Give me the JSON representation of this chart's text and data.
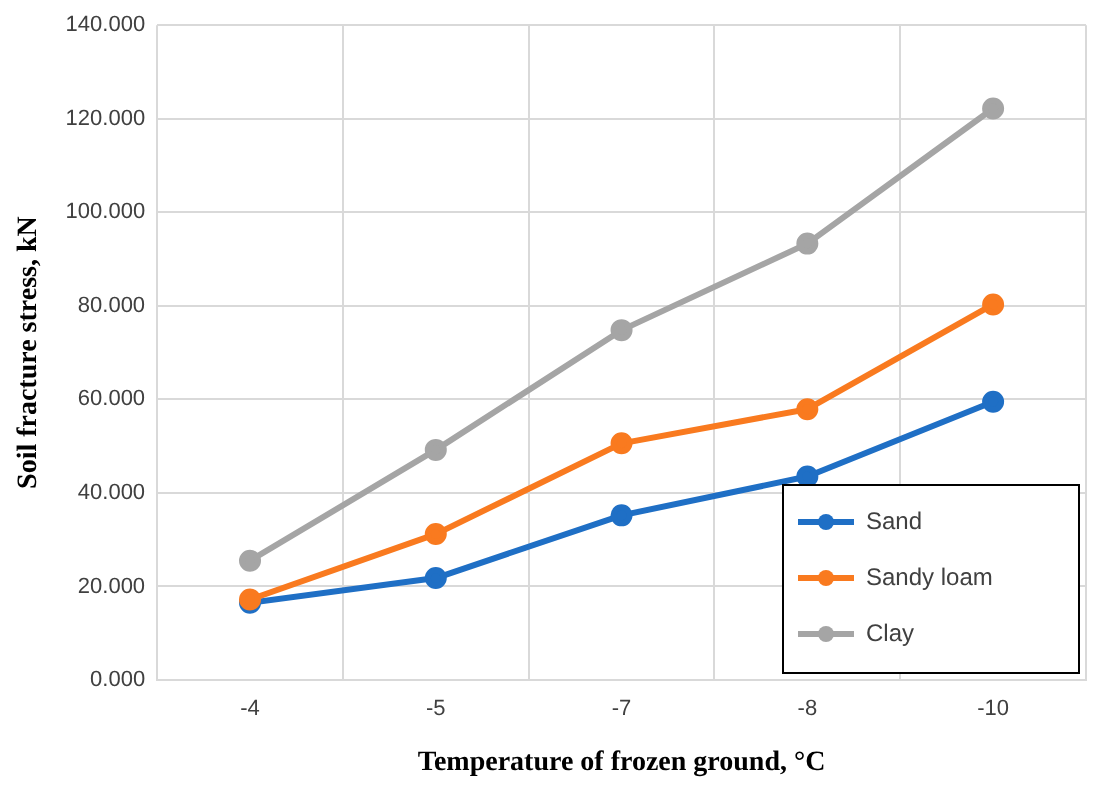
{
  "chart_data": {
    "type": "line",
    "xlabel": "Temperature of frozen ground, °C",
    "ylabel": "Soil fracture stress, kN",
    "categories": [
      "-4",
      "-5",
      "-7",
      "-8",
      "-10"
    ],
    "series": [
      {
        "name": "Sand",
        "color": "#1f6fc5",
        "values": [
          16.5,
          21.8,
          35.2,
          43.5,
          59.5
        ]
      },
      {
        "name": "Sandy loam",
        "color": "#f97a1f",
        "values": [
          17.2,
          31.2,
          50.6,
          57.9,
          80.3
        ]
      },
      {
        "name": "Clay",
        "color": "#a5a5a5",
        "values": [
          25.5,
          49.2,
          74.8,
          93.3,
          122.2
        ]
      }
    ],
    "ylim": [
      0,
      140
    ],
    "yticks": [
      {
        "value": 0,
        "label": "0.000"
      },
      {
        "value": 20,
        "label": "20.000"
      },
      {
        "value": 40,
        "label": "40.000"
      },
      {
        "value": 60,
        "label": "60.000"
      },
      {
        "value": 80,
        "label": "80.000"
      },
      {
        "value": 100,
        "label": "100.000"
      },
      {
        "value": 120,
        "label": "120.000"
      },
      {
        "value": 140,
        "label": "140.000"
      }
    ],
    "grid": true,
    "legend": "bottom right",
    "marker": "circle",
    "line_style": "solid"
  }
}
